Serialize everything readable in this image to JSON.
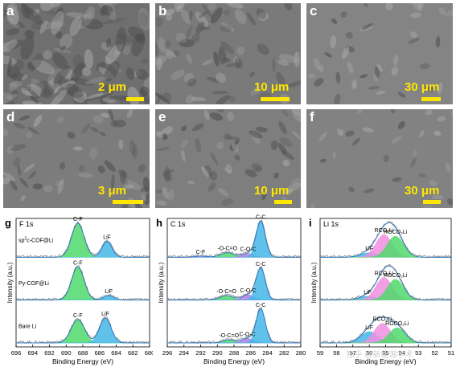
{
  "sem_panels": [
    {
      "id": "a",
      "letter": "a",
      "scale": "2 μm"
    },
    {
      "id": "b",
      "letter": "b",
      "scale": "10 μm"
    },
    {
      "id": "c",
      "letter": "c",
      "scale": "30 μm"
    },
    {
      "id": "d",
      "letter": "d",
      "scale": "3 μm"
    },
    {
      "id": "e",
      "letter": "e",
      "scale": "10 μm"
    },
    {
      "id": "f",
      "letter": "f",
      "scale": "30 μm"
    }
  ],
  "colors": {
    "scale": "#ffe600",
    "raw_trace": "#7a7a7a",
    "fit_envelope": "#1f6fbf",
    "cf_fill": "#4fd96b",
    "lif_fill": "#44b6e8",
    "cc_fill": "#44b6e8",
    "coc_fill": "#b07ee8",
    "ocoo_fill": "#4fd96b",
    "rco2li_fill": "#f08ee0",
    "roco2li_fill": "#4fd96b"
  },
  "chart_data": [
    {
      "type": "line",
      "panel_letter": "g",
      "title": "F 1s",
      "xlabel": "Binding Energy (eV)",
      "ylabel": "Intensity (a.u.)",
      "xlim": [
        696,
        680
      ],
      "x_ticks": [
        "696",
        "694",
        "692",
        "690",
        "688",
        "686",
        "684",
        "682",
        "680"
      ],
      "x_tick_values": [
        696,
        694,
        692,
        690,
        688,
        686,
        684,
        682,
        680
      ],
      "spectra": [
        {
          "label": "sp²c-COF@Li",
          "label_parts": [
            "sp",
            "2",
            "c-COF@Li"
          ],
          "peaks": [
            {
              "name": "C-F",
              "center": 688.6,
              "sigma": 0.75,
              "height": 0.9,
              "color_key": "cf_fill"
            },
            {
              "name": "LiF",
              "center": 685.1,
              "sigma": 0.6,
              "height": 0.42,
              "color_key": "lif_fill"
            }
          ]
        },
        {
          "label": "Py-COF@Li",
          "peaks": [
            {
              "name": "C-F",
              "center": 688.6,
              "sigma": 0.75,
              "height": 0.88,
              "color_key": "cf_fill"
            },
            {
              "name": "LiF",
              "center": 684.9,
              "sigma": 0.6,
              "height": 0.12,
              "color_key": "lif_fill"
            }
          ]
        },
        {
          "label": "Bare Li",
          "peaks": [
            {
              "name": "C-F",
              "center": 688.6,
              "sigma": 0.8,
              "height": 0.62,
              "color_key": "cf_fill"
            },
            {
              "name": "LiF",
              "center": 685.3,
              "sigma": 0.7,
              "height": 0.66,
              "color_key": "lif_fill"
            }
          ]
        }
      ]
    },
    {
      "type": "line",
      "panel_letter": "h",
      "title": "C 1s",
      "xlabel": "Binding Energy (eV)",
      "ylabel": "Intensity (a.u.)",
      "xlim": [
        296,
        280
      ],
      "x_ticks": [
        "296",
        "294",
        "292",
        "290",
        "288",
        "286",
        "284",
        "282",
        "280"
      ],
      "x_tick_values": [
        296,
        294,
        292,
        290,
        288,
        286,
        284,
        282,
        280
      ],
      "spectra": [
        {
          "label": "",
          "peaks": [
            {
              "name": "C-F",
              "center": 292.0,
              "sigma": 0.7,
              "height": 0.03,
              "color_key": "coc_fill"
            },
            {
              "name": "-O-C=O",
              "center": 288.8,
              "sigma": 0.8,
              "height": 0.12,
              "color_key": "ocoo_fill"
            },
            {
              "name": "C-O-C",
              "center": 286.3,
              "sigma": 0.7,
              "height": 0.1,
              "color_key": "coc_fill"
            },
            {
              "name": "C-C",
              "center": 284.8,
              "sigma": 0.55,
              "height": 0.95,
              "color_key": "cc_fill"
            }
          ]
        },
        {
          "label": "",
          "peaks": [
            {
              "name": "-O-C=O",
              "center": 288.9,
              "sigma": 0.8,
              "height": 0.12,
              "color_key": "ocoo_fill"
            },
            {
              "name": "C-O-C",
              "center": 286.3,
              "sigma": 0.7,
              "height": 0.14,
              "color_key": "coc_fill"
            },
            {
              "name": "C-C",
              "center": 284.8,
              "sigma": 0.55,
              "height": 0.85,
              "color_key": "cc_fill"
            }
          ]
        },
        {
          "label": "",
          "peaks": [
            {
              "name": "-O-C=O",
              "center": 288.6,
              "sigma": 0.7,
              "height": 0.08,
              "color_key": "ocoo_fill"
            },
            {
              "name": "C-O-C",
              "center": 286.4,
              "sigma": 0.7,
              "height": 0.12,
              "color_key": "coc_fill"
            },
            {
              "name": "C-C",
              "center": 284.8,
              "sigma": 0.55,
              "height": 0.9,
              "color_key": "cc_fill"
            }
          ]
        }
      ]
    },
    {
      "type": "line",
      "panel_letter": "i",
      "title": "Li 1s",
      "xlabel": "Binding Energy (eV)",
      "ylabel": "Intensity (a.u.)",
      "xlim": [
        59,
        51
      ],
      "x_ticks": [
        "59",
        "58",
        "57",
        "56",
        "55",
        "54",
        "53",
        "52",
        "51"
      ],
      "x_tick_values": [
        59,
        58,
        57,
        56,
        55,
        54,
        53,
        52,
        51
      ],
      "spectra": [
        {
          "label": "",
          "peaks": [
            {
              "name": "LiF",
              "center": 56.0,
              "sigma": 0.5,
              "height": 0.12,
              "color_key": "lif_fill"
            },
            {
              "name": "RCO₂Li",
              "center": 55.1,
              "sigma": 0.5,
              "height": 0.6,
              "color_key": "rco2li_fill"
            },
            {
              "name": "ROCO₂Li",
              "center": 54.4,
              "sigma": 0.5,
              "height": 0.56,
              "color_key": "roco2li_fill"
            }
          ]
        },
        {
          "label": "",
          "peaks": [
            {
              "name": "LiF",
              "center": 56.1,
              "sigma": 0.5,
              "height": 0.1,
              "color_key": "lif_fill"
            },
            {
              "name": "RCO₂Li",
              "center": 55.1,
              "sigma": 0.5,
              "height": 0.6,
              "color_key": "rco2li_fill"
            },
            {
              "name": "ROCO₂Li",
              "center": 54.4,
              "sigma": 0.5,
              "height": 0.55,
              "color_key": "roco2li_fill"
            }
          ]
        },
        {
          "label": "",
          "peaks": [
            {
              "name": "LiF",
              "center": 56.0,
              "sigma": 0.5,
              "height": 0.3,
              "color_key": "lif_fill"
            },
            {
              "name": "RCO₂Li",
              "center": 55.2,
              "sigma": 0.5,
              "height": 0.52,
              "color_key": "rco2li_fill"
            },
            {
              "name": "ROCO₂Li",
              "center": 54.3,
              "sigma": 0.5,
              "height": 0.4,
              "color_key": "roco2li_fill"
            }
          ]
        }
      ]
    }
  ],
  "watermark_text": "知乎 @新能源学术"
}
